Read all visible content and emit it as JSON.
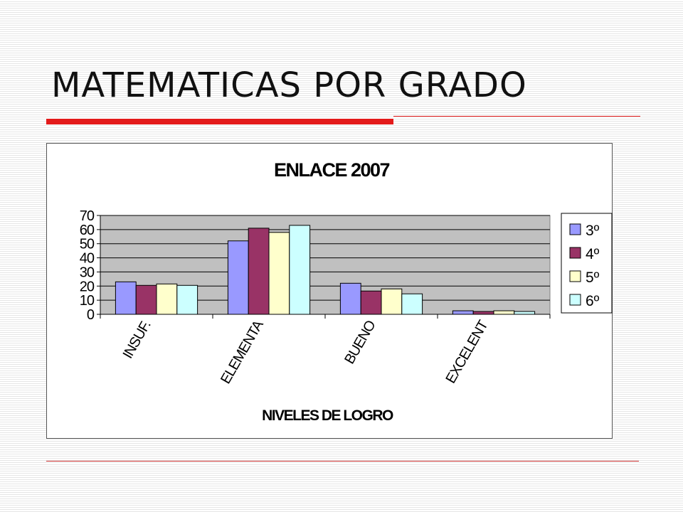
{
  "slide": {
    "title": "MATEMATICAS POR GRADO"
  },
  "chart_data": {
    "type": "bar",
    "title": "ENLACE 2007",
    "xlabel": "NIVELES DE LOGRO",
    "ylabel": "",
    "ylim": [
      0,
      70
    ],
    "yticks": [
      0,
      10,
      20,
      30,
      40,
      50,
      60,
      70
    ],
    "ytick_labels": [
      "0",
      "10",
      "20",
      "30",
      "40",
      "50",
      "60",
      "70"
    ],
    "categories": [
      "INSUF.",
      "ELEMENTAL",
      "BUENO",
      "EXCELENTE"
    ],
    "category_labels_visible": [
      "INSUF.",
      "ELEMENTA",
      "BUENO",
      "EXCELENT"
    ],
    "series": [
      {
        "name": "3º",
        "color": "#9999ff",
        "values": [
          23,
          52,
          22,
          2.5
        ]
      },
      {
        "name": "4º",
        "color": "#993366",
        "values": [
          20.5,
          61,
          16.5,
          2
        ]
      },
      {
        "name": "5º",
        "color": "#ffffcc",
        "values": [
          21.5,
          58,
          18,
          2.5
        ]
      },
      {
        "name": "6º",
        "color": "#ccffff",
        "values": [
          20.5,
          63,
          14.5,
          2
        ]
      }
    ],
    "plot_background": "#c0c0c0",
    "grid": true,
    "legend_position": "right"
  }
}
